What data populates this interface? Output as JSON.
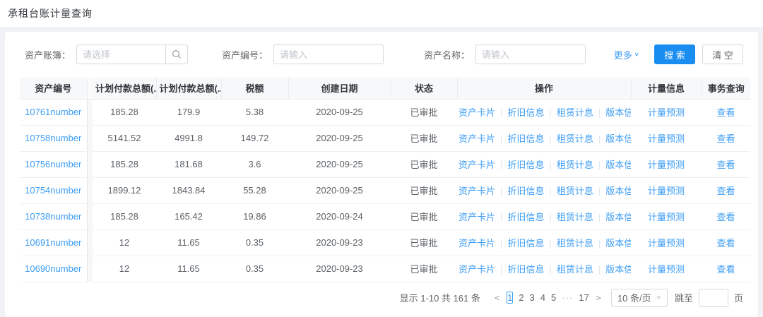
{
  "page": {
    "title": "承租台账计量查询"
  },
  "colors": {
    "primary": "#1a8df0",
    "link": "#3d9df5",
    "header_bg": "#f7f8fa",
    "page_bg": "#f0f2f5"
  },
  "filters": {
    "fields": [
      {
        "label": "资产账簿：",
        "placeholder": "请选择"
      },
      {
        "label": "资产编号：",
        "placeholder": "请输入"
      },
      {
        "label": "资产名称：",
        "placeholder": "请输入"
      }
    ],
    "more_label": "更多",
    "search_label": "搜 索",
    "clear_label": "清 空"
  },
  "icons": {
    "chevron_down": "∨",
    "prev": "<",
    "next": ">"
  },
  "table": {
    "columns": [
      "资产编号",
      "计划付款总额(...",
      "计划付款总额(...",
      "税额",
      "创建日期",
      "状态",
      "操作",
      "计量信息",
      "事务查询"
    ],
    "operations": [
      "资产卡片",
      "折旧信息",
      "租赁计息",
      "版本信息"
    ],
    "measure_label": "计量预测",
    "view_label": "查看",
    "rows": [
      {
        "asset_no": "10761number",
        "total1": "185.28",
        "total2": "179.9",
        "tax": "5.38",
        "date": "2020-09-25",
        "status": "已审批"
      },
      {
        "asset_no": "10758number",
        "total1": "5141.52",
        "total2": "4991.8",
        "tax": "149.72",
        "date": "2020-09-25",
        "status": "已审批"
      },
      {
        "asset_no": "10756number",
        "total1": "185.28",
        "total2": "181.68",
        "tax": "3.6",
        "date": "2020-09-25",
        "status": "已审批"
      },
      {
        "asset_no": "10754number",
        "total1": "1899.12",
        "total2": "1843.84",
        "tax": "55.28",
        "date": "2020-09-25",
        "status": "已审批"
      },
      {
        "asset_no": "10738number",
        "total1": "185.28",
        "total2": "165.42",
        "tax": "19.86",
        "date": "2020-09-24",
        "status": "已审批"
      },
      {
        "asset_no": "10691number",
        "total1": "12",
        "total2": "11.65",
        "tax": "0.35",
        "date": "2020-09-23",
        "status": "已审批"
      },
      {
        "asset_no": "10690number",
        "total1": "12",
        "total2": "11.65",
        "tax": "0.35",
        "date": "2020-09-23",
        "status": "已审批"
      }
    ]
  },
  "pagination": {
    "summary": "显示 1-10 共 161 条",
    "pages": [
      "1",
      "2",
      "3",
      "4",
      "5",
      "···",
      "17"
    ],
    "active_page": "1",
    "page_size": "10 条/页",
    "jump_prefix": "跳至",
    "jump_suffix": "页",
    "jump_value": ""
  }
}
